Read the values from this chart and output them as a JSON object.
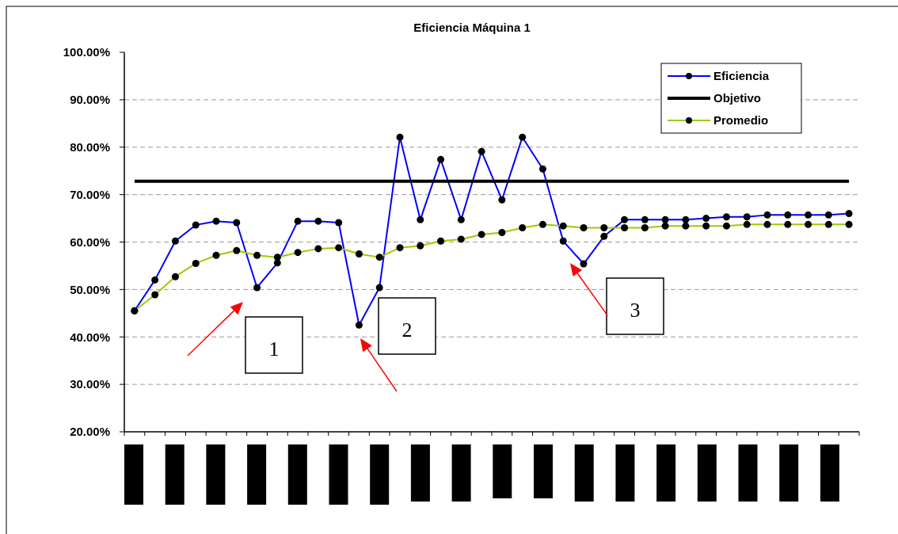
{
  "chart_data": {
    "type": "line",
    "title": "Eficiencia Máquina 1",
    "categories": [
      null,
      null,
      null,
      null,
      null,
      null,
      null,
      null,
      null,
      null,
      null,
      null,
      null,
      null,
      null,
      null,
      null,
      null,
      null,
      null,
      null,
      null,
      null,
      null,
      null,
      null,
      null,
      null,
      null,
      null,
      null,
      null,
      null,
      null,
      null,
      null
    ],
    "series": [
      {
        "name": "Eficiencia",
        "color": "#0000ff",
        "marker": "circle",
        "values": [
          45.5,
          52.0,
          60.2,
          63.6,
          64.4,
          64.1,
          50.4,
          55.6,
          64.4,
          64.4,
          64.1,
          42.5,
          50.4,
          82.1,
          64.7,
          77.4,
          64.7,
          79.1,
          68.9,
          82.1,
          75.4,
          60.2,
          55.4,
          61.2,
          64.7,
          64.7,
          64.7,
          64.7,
          65.0,
          65.3,
          65.3,
          65.7,
          65.7,
          65.7,
          65.7,
          66.0
        ]
      },
      {
        "name": "Objetivo",
        "color": "#000000",
        "marker": "none",
        "values": [
          72.8,
          72.8,
          72.8,
          72.8,
          72.8,
          72.8,
          72.8,
          72.8,
          72.8,
          72.8,
          72.8,
          72.8,
          72.8,
          72.8,
          72.8,
          72.8,
          72.8,
          72.8,
          72.8,
          72.8,
          72.8,
          72.8,
          72.8,
          72.8,
          72.8,
          72.8,
          72.8,
          72.8,
          72.8,
          72.8,
          72.8,
          72.8,
          72.8,
          72.8,
          72.8,
          72.8
        ]
      },
      {
        "name": "Promedio",
        "color": "#99cc00",
        "marker": "circle",
        "values": [
          45.5,
          48.9,
          52.7,
          55.5,
          57.2,
          58.2,
          57.2,
          56.8,
          57.8,
          58.6,
          58.8,
          57.5,
          56.8,
          58.8,
          59.2,
          60.2,
          60.6,
          61.6,
          62.0,
          63.0,
          63.7,
          63.4,
          63.0,
          63.0,
          63.0,
          63.0,
          63.4,
          63.4,
          63.4,
          63.4,
          63.7,
          63.7,
          63.7,
          63.7,
          63.7,
          63.7
        ]
      }
    ],
    "ylim": [
      20,
      100
    ],
    "yticks": [
      {
        "value": 20,
        "label": "20.00%"
      },
      {
        "value": 30,
        "label": "30.00%"
      },
      {
        "value": 40,
        "label": "40.00%"
      },
      {
        "value": 50,
        "label": "50.00%"
      },
      {
        "value": 60,
        "label": "60.00%"
      },
      {
        "value": 70,
        "label": "70.00%"
      },
      {
        "value": 80,
        "label": "80.00%"
      },
      {
        "value": 90,
        "label": "90.00%"
      },
      {
        "value": 100,
        "label": "100.00%"
      }
    ],
    "grid": "y",
    "legend": "top right",
    "annotations": [
      "1",
      "2",
      "3"
    ]
  }
}
